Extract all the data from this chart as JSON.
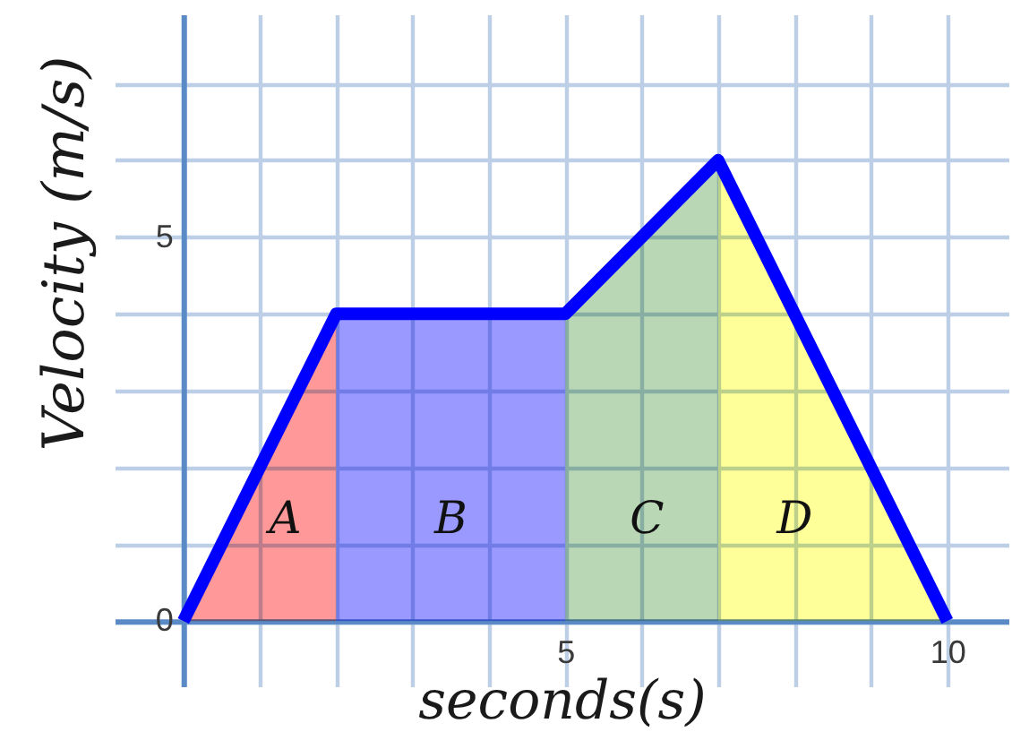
{
  "chart_data": {
    "type": "line",
    "xlabel": "seconds(s)",
    "ylabel": "Velocity (m/s)",
    "xlim": [
      -0.9,
      10.8
    ],
    "ylim": [
      -0.85,
      7.9
    ],
    "xticks": [
      {
        "value": 0,
        "label": null
      },
      {
        "value": 1,
        "label": null
      },
      {
        "value": 2,
        "label": null
      },
      {
        "value": 3,
        "label": null
      },
      {
        "value": 4,
        "label": null
      },
      5,
      {
        "value": 6,
        "label": null
      },
      {
        "value": 7,
        "label": null
      },
      {
        "value": 8,
        "label": null
      },
      {
        "value": 9,
        "label": null
      },
      10
    ],
    "yticks": [
      0,
      {
        "value": 1,
        "label": null
      },
      {
        "value": 2,
        "label": null
      },
      {
        "value": 3,
        "label": null
      },
      {
        "value": 4,
        "label": null
      },
      5,
      {
        "value": 6,
        "label": null
      },
      {
        "value": 7,
        "label": null
      }
    ],
    "grid": true,
    "line_style": "solid",
    "series": [
      {
        "type": "area",
        "name": "A",
        "color": "#ff9999",
        "x": [
          0,
          2
        ],
        "values": [
          0,
          4
        ]
      },
      {
        "type": "area",
        "name": "B",
        "color": "#9999ff",
        "x": [
          2,
          5
        ],
        "values": [
          4,
          4
        ]
      },
      {
        "type": "area",
        "name": "C",
        "color": "#b9d7b5",
        "x": [
          5,
          7
        ],
        "values": [
          4,
          6
        ]
      },
      {
        "type": "area",
        "name": "D",
        "color": "#ffff99",
        "x": [
          7,
          10
        ],
        "values": [
          6,
          0
        ]
      },
      {
        "type": "line",
        "color": "#0000ff",
        "x": [
          0,
          2,
          5,
          7,
          10
        ],
        "values": [
          0,
          4,
          4,
          6,
          0
        ]
      }
    ]
  }
}
